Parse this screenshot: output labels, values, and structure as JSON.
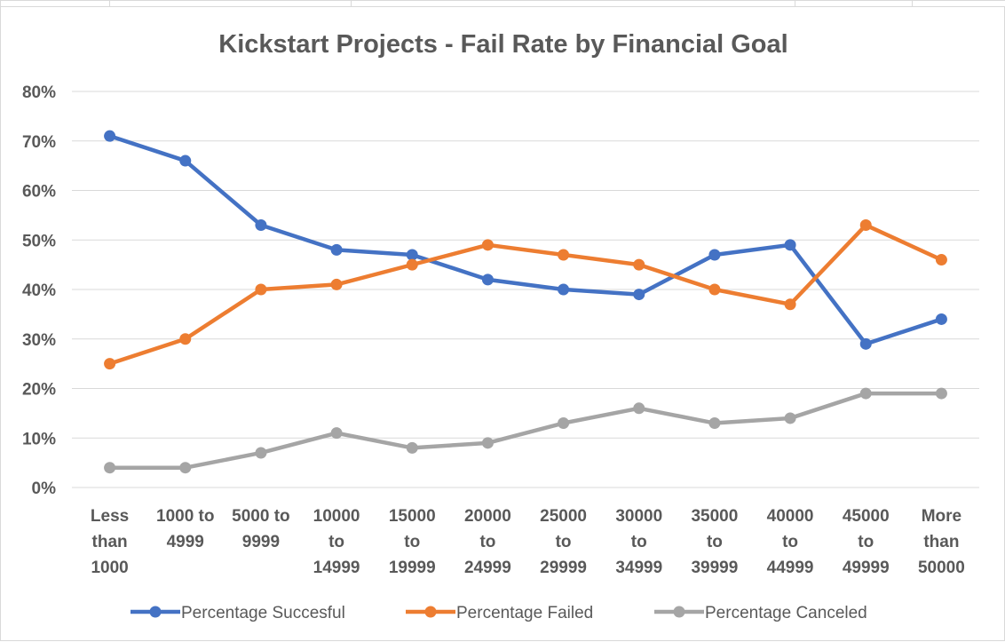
{
  "colors": {
    "grid": "#d9d9d9",
    "text": "#595959"
  },
  "chart_data": {
    "type": "line",
    "title": "Kickstart Projects - Fail Rate by Financial Goal",
    "xlabel": "",
    "ylabel": "",
    "ylim": [
      0,
      80
    ],
    "y_ticks": [
      "0%",
      "10%",
      "20%",
      "30%",
      "40%",
      "50%",
      "60%",
      "70%",
      "80%"
    ],
    "grid": true,
    "legend_position": "bottom",
    "categories": [
      [
        "Less",
        "than",
        "1000"
      ],
      [
        "1000 to",
        "4999"
      ],
      [
        "5000 to",
        "9999"
      ],
      [
        "10000",
        "to",
        "14999"
      ],
      [
        "15000",
        "to",
        "19999"
      ],
      [
        "20000",
        "to",
        "24999"
      ],
      [
        "25000",
        "to",
        "29999"
      ],
      [
        "30000",
        "to",
        "34999"
      ],
      [
        "35000",
        "to",
        "39999"
      ],
      [
        "40000",
        "to",
        "44999"
      ],
      [
        "45000",
        "to",
        "49999"
      ],
      [
        "More",
        "than",
        "50000"
      ]
    ],
    "series": [
      {
        "name": "Percentage Succesful",
        "color": "#4472c4",
        "values": [
          71,
          66,
          53,
          48,
          47,
          42,
          40,
          39,
          47,
          49,
          29,
          34
        ]
      },
      {
        "name": "Percentage Failed",
        "color": "#ed7d31",
        "values": [
          25,
          30,
          40,
          41,
          45,
          49,
          47,
          45,
          40,
          37,
          53,
          46
        ]
      },
      {
        "name": "Percentage Canceled",
        "color": "#a5a5a5",
        "values": [
          4,
          4,
          7,
          11,
          8,
          9,
          13,
          16,
          13,
          14,
          19,
          19
        ]
      }
    ]
  }
}
